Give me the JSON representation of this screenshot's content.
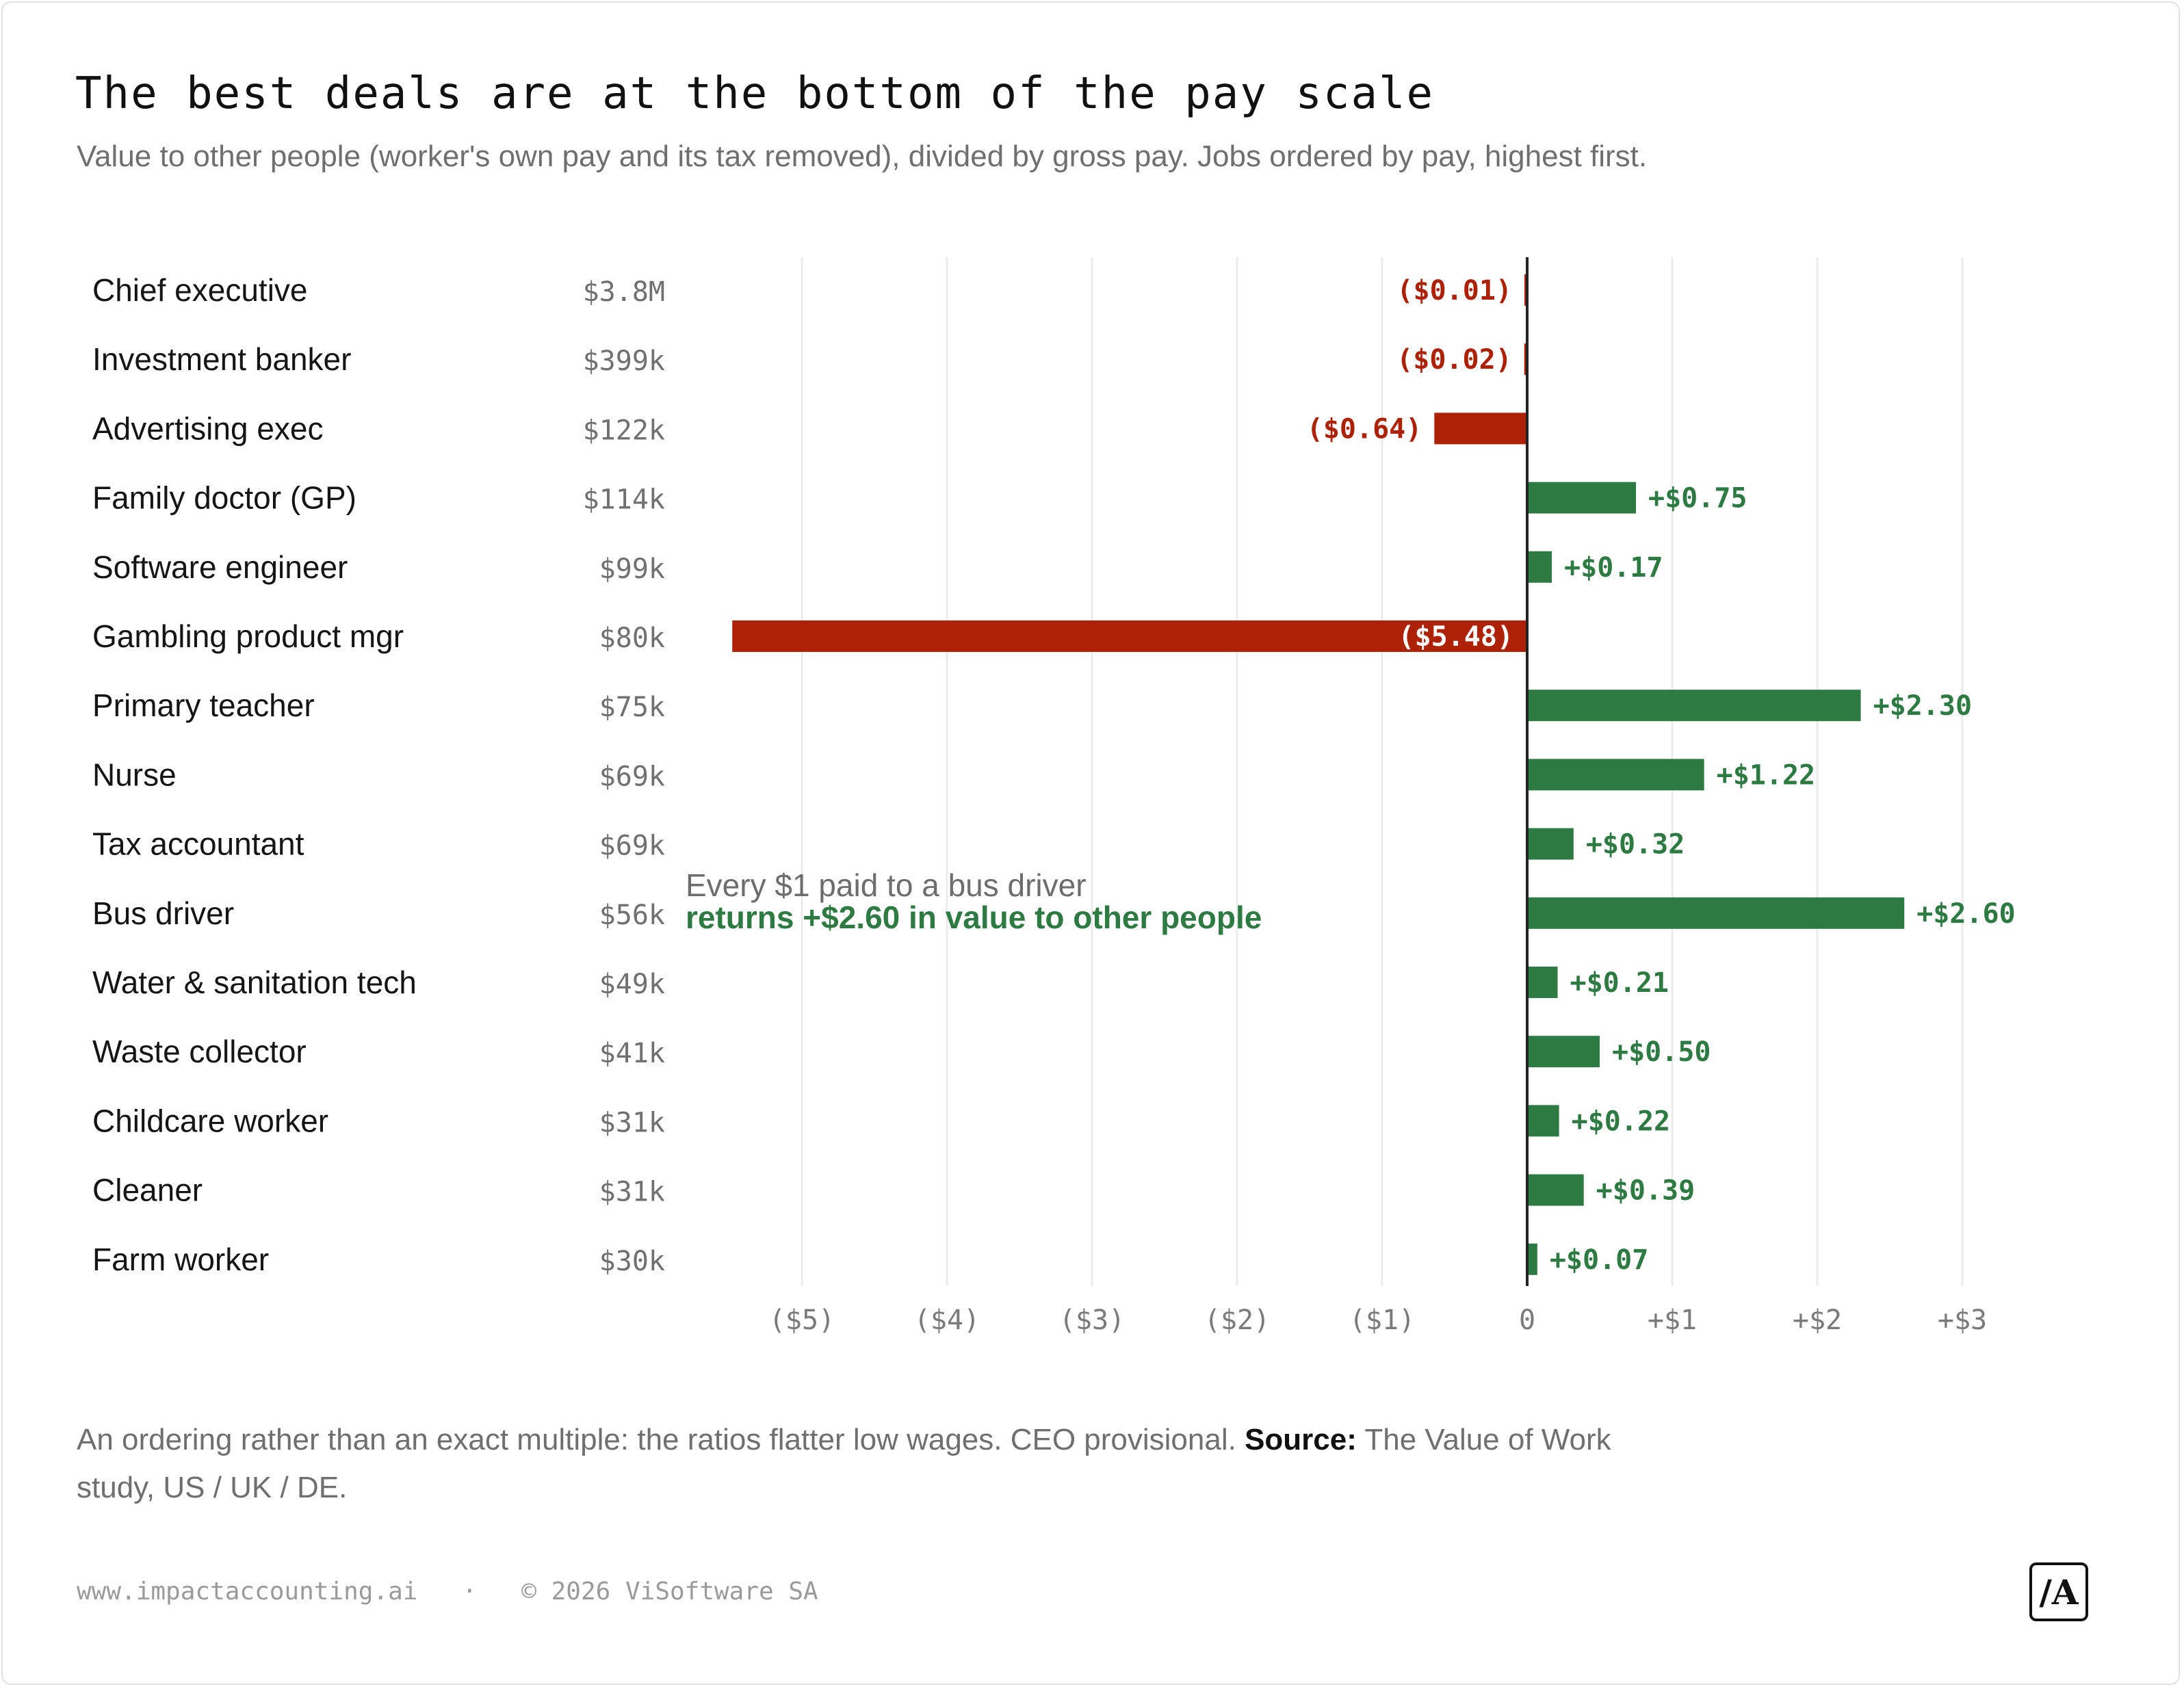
{
  "header": {
    "title": "The best deals are at the bottom of the pay scale",
    "subtitle": "Value to other people (worker's own pay and its tax removed), divided by gross pay. Jobs ordered by pay, highest first."
  },
  "chart_data": {
    "type": "bar",
    "orientation": "horizontal",
    "categories": [
      "Chief executive",
      "Investment banker",
      "Advertising exec",
      "Family doctor (GP)",
      "Software engineer",
      "Gambling product mgr",
      "Primary teacher",
      "Nurse",
      "Tax accountant",
      "Bus driver",
      "Water & sanitation tech",
      "Waste collector",
      "Childcare worker",
      "Cleaner",
      "Farm worker"
    ],
    "pay_labels": [
      "$3.8M",
      "$399k",
      "$122k",
      "$114k",
      "$99k",
      "$80k",
      "$75k",
      "$69k",
      "$69k",
      "$56k",
      "$49k",
      "$41k",
      "$31k",
      "$31k",
      "$30k"
    ],
    "values": [
      -0.01,
      -0.02,
      -0.64,
      0.75,
      0.17,
      -5.48,
      2.3,
      1.22,
      0.32,
      2.6,
      0.21,
      0.5,
      0.22,
      0.39,
      0.07
    ],
    "value_labels": [
      "($0.01)",
      "($0.02)",
      "($0.64)",
      "+$0.75",
      "+$0.17",
      "($5.48)",
      "+$2.30",
      "+$1.22",
      "+$0.32",
      "+$2.60",
      "+$0.21",
      "+$0.50",
      "+$0.22",
      "+$0.39",
      "+$0.07"
    ],
    "xlim": [
      -5.5,
      3.0
    ],
    "x_ticks": [
      -5,
      -4,
      -3,
      -2,
      -1,
      0,
      1,
      2,
      3
    ],
    "x_tick_labels": [
      "($5)",
      "($4)",
      "($3)",
      "($2)",
      "($1)",
      "0",
      "+$1",
      "+$2",
      "+$3"
    ],
    "grid": "vertical",
    "colors": {
      "positive": "#2e7a43",
      "negative": "#ad2106",
      "zero_line": "#222222",
      "grid": "#ebebeb"
    },
    "annotation": {
      "line1": "Every $1 paid to a bus driver",
      "line2": "returns +$2.60 in value to other people"
    }
  },
  "footnote": {
    "text": "An ordering rather than an exact multiple: the ratios flatter low wages. CEO provisional.",
    "source_label": "Source:",
    "source_text": "The Value of Work study, US / UK / DE."
  },
  "footer": {
    "url": "www.impactaccounting.ai",
    "separator": "·",
    "copyright": "© 2026 ViSoftware SA",
    "logo_text": "/A"
  }
}
